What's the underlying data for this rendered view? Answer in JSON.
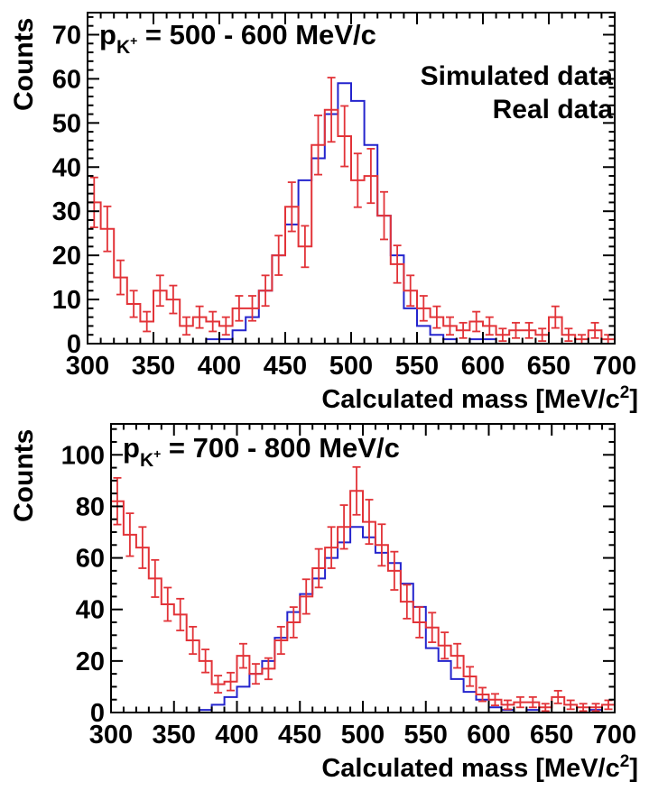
{
  "figure": {
    "background": "#ffffff",
    "axis_color": "#000000"
  },
  "chart_data": [
    {
      "type": "line",
      "style": "step-histogram",
      "title": {
        "main": "p",
        "sub": "K",
        "sup": "+",
        "rest": " = 500 - 600 MeV/c"
      },
      "xlabel": {
        "pre": "Calculated mass [MeV/c",
        "sup": "2",
        "post": "]"
      },
      "ylabel": "Counts",
      "xlim": [
        300,
        700
      ],
      "ylim": [
        0,
        75
      ],
      "bin_width": 10,
      "x_major_ticks": [
        "300",
        "350",
        "400",
        "450",
        "500",
        "550",
        "600",
        "650",
        "700"
      ],
      "x_minor_step": 10,
      "y_major_ticks": [
        "0",
        "10",
        "20",
        "30",
        "40",
        "50",
        "60",
        "70"
      ],
      "y_minor_step": 2,
      "legend": [
        {
          "label": "Simulated data",
          "color": "#2424cd"
        },
        {
          "label": "Real data",
          "color": "#e23338"
        }
      ],
      "series": [
        {
          "name": "Simulated data",
          "color": "#2424cd",
          "error_bars": false,
          "values": [
            0,
            0,
            0,
            0,
            0,
            0,
            0,
            0,
            0,
            1,
            1,
            3,
            6,
            12,
            20,
            27,
            37,
            42,
            52,
            59,
            55,
            45,
            29,
            20,
            8,
            4,
            2,
            1,
            0,
            1,
            1,
            0,
            0,
            0,
            0,
            0,
            0,
            0,
            0,
            0
          ]
        },
        {
          "name": "Real data",
          "color": "#e23338",
          "error_bars": true,
          "values": [
            32,
            26,
            15,
            9,
            5,
            12,
            10,
            4,
            6,
            5,
            4,
            8,
            8,
            12,
            20,
            31,
            22,
            45,
            53,
            47,
            37,
            38,
            29,
            18,
            12,
            8,
            6,
            4,
            3,
            5,
            4,
            2,
            3,
            3,
            2,
            6,
            2,
            1,
            3,
            1
          ]
        }
      ]
    },
    {
      "type": "line",
      "style": "step-histogram",
      "title": {
        "main": "p",
        "sub": "K",
        "sup": "+",
        "rest": " = 700 - 800 MeV/c"
      },
      "xlabel": {
        "pre": "Calculated mass [MeV/c",
        "sup": "2",
        "post": "]"
      },
      "ylabel": "Counts",
      "xlim": [
        300,
        700
      ],
      "ylim": [
        0,
        112
      ],
      "bin_width": 10,
      "x_major_ticks": [
        "300",
        "350",
        "400",
        "450",
        "500",
        "550",
        "600",
        "650",
        "700"
      ],
      "x_minor_step": 10,
      "y_major_ticks": [
        "0",
        "20",
        "40",
        "60",
        "80",
        "100"
      ],
      "y_minor_step": 5,
      "legend": null,
      "series": [
        {
          "name": "Simulated data",
          "color": "#2424cd",
          "error_bars": false,
          "values": [
            0,
            0,
            0,
            0,
            0,
            0,
            0,
            1,
            3,
            6,
            10,
            15,
            20,
            29,
            39,
            46,
            52,
            60,
            66,
            72,
            68,
            62,
            58,
            50,
            41,
            25,
            20,
            13,
            8,
            5,
            2,
            1,
            0,
            1,
            0,
            0,
            0,
            0,
            1,
            0
          ]
        },
        {
          "name": "Real data",
          "color": "#e23338",
          "error_bars": true,
          "values": [
            82,
            69,
            64,
            52,
            42,
            38,
            28,
            20,
            11,
            12,
            22,
            15,
            17,
            28,
            35,
            45,
            56,
            64,
            72,
            86,
            74,
            65,
            55,
            43,
            35,
            33,
            26,
            22,
            14,
            7,
            5,
            3,
            4,
            4,
            2,
            6,
            3,
            2,
            2,
            3
          ]
        }
      ]
    }
  ]
}
